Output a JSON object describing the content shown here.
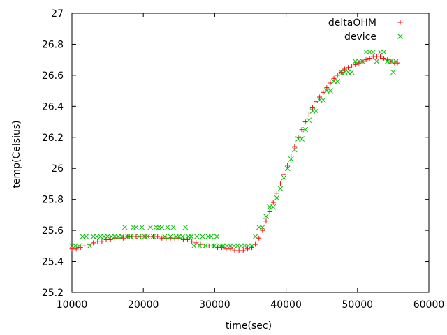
{
  "chart_data": {
    "type": "scatter",
    "xlabel": "time(sec)",
    "ylabel": "temp(Celsius)",
    "xlim": [
      10000,
      60000
    ],
    "ylim": [
      25.2,
      27
    ],
    "xticks": [
      10000,
      20000,
      30000,
      40000,
      50000,
      60000
    ],
    "yticks": [
      25.2,
      25.4,
      25.6,
      25.8,
      26,
      26.2,
      26.4,
      26.6,
      26.8,
      27
    ],
    "grid": false,
    "legend_position": "top-right",
    "series": [
      {
        "name": "deltaOHM",
        "marker": "plus",
        "color": "#ff0000",
        "points": [
          [
            10000,
            25.48
          ],
          [
            10600,
            25.48
          ],
          [
            11200,
            25.49
          ],
          [
            11800,
            25.5
          ],
          [
            12400,
            25.51
          ],
          [
            13000,
            25.52
          ],
          [
            13600,
            25.53
          ],
          [
            14200,
            25.53
          ],
          [
            14800,
            25.54
          ],
          [
            15400,
            25.54
          ],
          [
            16000,
            25.55
          ],
          [
            16600,
            25.55
          ],
          [
            17200,
            25.55
          ],
          [
            17800,
            25.56
          ],
          [
            18400,
            25.56
          ],
          [
            19000,
            25.56
          ],
          [
            19600,
            25.56
          ],
          [
            20200,
            25.56
          ],
          [
            20800,
            25.56
          ],
          [
            21400,
            25.56
          ],
          [
            22000,
            25.56
          ],
          [
            22600,
            25.55
          ],
          [
            23200,
            25.55
          ],
          [
            23800,
            25.55
          ],
          [
            24400,
            25.55
          ],
          [
            25000,
            25.55
          ],
          [
            25600,
            25.54
          ],
          [
            26200,
            25.54
          ],
          [
            26800,
            25.53
          ],
          [
            27400,
            25.52
          ],
          [
            28000,
            25.51
          ],
          [
            28600,
            25.5
          ],
          [
            29200,
            25.5
          ],
          [
            29800,
            25.5
          ],
          [
            30400,
            25.49
          ],
          [
            31000,
            25.49
          ],
          [
            31600,
            25.48
          ],
          [
            32200,
            25.48
          ],
          [
            32800,
            25.47
          ],
          [
            33400,
            25.47
          ],
          [
            34000,
            25.47
          ],
          [
            34600,
            25.48
          ],
          [
            35200,
            25.49
          ],
          [
            35700,
            25.51
          ],
          [
            36200,
            25.55
          ],
          [
            36700,
            25.6
          ],
          [
            37200,
            25.66
          ],
          [
            37700,
            25.72
          ],
          [
            38200,
            25.78
          ],
          [
            38700,
            25.84
          ],
          [
            39200,
            25.9
          ],
          [
            39700,
            25.96
          ],
          [
            40200,
            26.02
          ],
          [
            40700,
            26.08
          ],
          [
            41200,
            26.14
          ],
          [
            41700,
            26.2
          ],
          [
            42200,
            26.25
          ],
          [
            42700,
            26.3
          ],
          [
            43200,
            26.35
          ],
          [
            43700,
            26.39
          ],
          [
            44200,
            26.43
          ],
          [
            44700,
            26.46
          ],
          [
            45200,
            26.49
          ],
          [
            45700,
            26.52
          ],
          [
            46200,
            26.55
          ],
          [
            46700,
            26.58
          ],
          [
            47200,
            26.6
          ],
          [
            47700,
            26.62
          ],
          [
            48200,
            26.64
          ],
          [
            48700,
            26.65
          ],
          [
            49200,
            26.66
          ],
          [
            49700,
            26.67
          ],
          [
            50200,
            26.68
          ],
          [
            50700,
            26.69
          ],
          [
            51200,
            26.7
          ],
          [
            51700,
            26.71
          ],
          [
            52200,
            26.72
          ],
          [
            52700,
            26.72
          ],
          [
            53200,
            26.72
          ],
          [
            53700,
            26.71
          ],
          [
            54200,
            26.7
          ],
          [
            54700,
            26.69
          ],
          [
            55200,
            26.68
          ],
          [
            55600,
            26.68
          ]
        ]
      },
      {
        "name": "device",
        "marker": "cross",
        "color": "#00c000",
        "points": [
          [
            10000,
            25.5
          ],
          [
            10500,
            25.5
          ],
          [
            11000,
            25.5
          ],
          [
            11500,
            25.56
          ],
          [
            12000,
            25.56
          ],
          [
            12500,
            25.5
          ],
          [
            13000,
            25.56
          ],
          [
            13500,
            25.56
          ],
          [
            14000,
            25.56
          ],
          [
            14500,
            25.56
          ],
          [
            15000,
            25.56
          ],
          [
            15500,
            25.56
          ],
          [
            16000,
            25.56
          ],
          [
            16500,
            25.56
          ],
          [
            17000,
            25.56
          ],
          [
            17400,
            25.62
          ],
          [
            17800,
            25.56
          ],
          [
            18200,
            25.56
          ],
          [
            18600,
            25.62
          ],
          [
            19000,
            25.62
          ],
          [
            19400,
            25.56
          ],
          [
            19800,
            25.62
          ],
          [
            20200,
            25.56
          ],
          [
            20600,
            25.56
          ],
          [
            21000,
            25.62
          ],
          [
            21400,
            25.56
          ],
          [
            21800,
            25.62
          ],
          [
            22200,
            25.62
          ],
          [
            22600,
            25.62
          ],
          [
            23000,
            25.56
          ],
          [
            23400,
            25.62
          ],
          [
            23800,
            25.56
          ],
          [
            24200,
            25.62
          ],
          [
            24600,
            25.56
          ],
          [
            25000,
            25.56
          ],
          [
            25500,
            25.56
          ],
          [
            25900,
            25.62
          ],
          [
            26300,
            25.56
          ],
          [
            26700,
            25.56
          ],
          [
            27100,
            25.5
          ],
          [
            27500,
            25.56
          ],
          [
            27900,
            25.5
          ],
          [
            28300,
            25.56
          ],
          [
            28700,
            25.5
          ],
          [
            29100,
            25.56
          ],
          [
            29500,
            25.56
          ],
          [
            29900,
            25.5
          ],
          [
            30300,
            25.56
          ],
          [
            30700,
            25.5
          ],
          [
            31200,
            25.5
          ],
          [
            31700,
            25.5
          ],
          [
            32200,
            25.5
          ],
          [
            32700,
            25.5
          ],
          [
            33200,
            25.5
          ],
          [
            33700,
            25.5
          ],
          [
            34200,
            25.5
          ],
          [
            34700,
            25.5
          ],
          [
            35200,
            25.5
          ],
          [
            35700,
            25.56
          ],
          [
            36200,
            25.62
          ],
          [
            36700,
            25.62
          ],
          [
            37200,
            25.69
          ],
          [
            37700,
            25.75
          ],
          [
            38200,
            25.75
          ],
          [
            38700,
            25.81
          ],
          [
            39200,
            25.87
          ],
          [
            39700,
            25.94
          ],
          [
            40200,
            26
          ],
          [
            40700,
            26.06
          ],
          [
            41200,
            26.12
          ],
          [
            41700,
            26.19
          ],
          [
            42200,
            26.19
          ],
          [
            42700,
            26.25
          ],
          [
            43200,
            26.31
          ],
          [
            43700,
            26.37
          ],
          [
            44200,
            26.37
          ],
          [
            44700,
            26.44
          ],
          [
            45200,
            26.44
          ],
          [
            45700,
            26.5
          ],
          [
            46200,
            26.5
          ],
          [
            46700,
            26.56
          ],
          [
            47200,
            26.56
          ],
          [
            47700,
            26.62
          ],
          [
            48200,
            26.62
          ],
          [
            48700,
            26.62
          ],
          [
            49200,
            26.62
          ],
          [
            49700,
            26.69
          ],
          [
            50200,
            26.69
          ],
          [
            50700,
            26.69
          ],
          [
            51200,
            26.75
          ],
          [
            51700,
            26.75
          ],
          [
            52200,
            26.75
          ],
          [
            52700,
            26.69
          ],
          [
            53200,
            26.75
          ],
          [
            53700,
            26.75
          ],
          [
            54200,
            26.69
          ],
          [
            54700,
            26.69
          ],
          [
            55000,
            26.62
          ],
          [
            55400,
            26.69
          ]
        ]
      }
    ]
  }
}
